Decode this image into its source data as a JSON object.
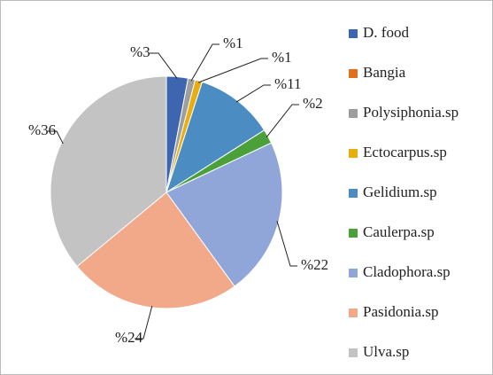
{
  "chart_data": {
    "type": "pie",
    "categories": [
      "D. food",
      "Bangia",
      "Polysiphonia.sp",
      "Ectocarpus.sp",
      "Gelidium.sp",
      "Caulerpa.sp",
      "Cladophora.sp",
      "Pasidonia.sp",
      "Ulva.sp"
    ],
    "values": [
      3,
      0,
      1,
      1,
      11,
      2,
      22,
      24,
      36
    ],
    "value_labels": [
      "%3",
      null,
      "%1",
      "%1",
      "%11",
      "%2",
      "%22",
      "%24",
      "%36"
    ],
    "colors": [
      "#3d65b0",
      "#e0701e",
      "#9e9e9e",
      "#e8ae10",
      "#4b8cc2",
      "#4ca03a",
      "#91a6d8",
      "#f2a98a",
      "#c3c3c3"
    ],
    "legend": "right"
  }
}
